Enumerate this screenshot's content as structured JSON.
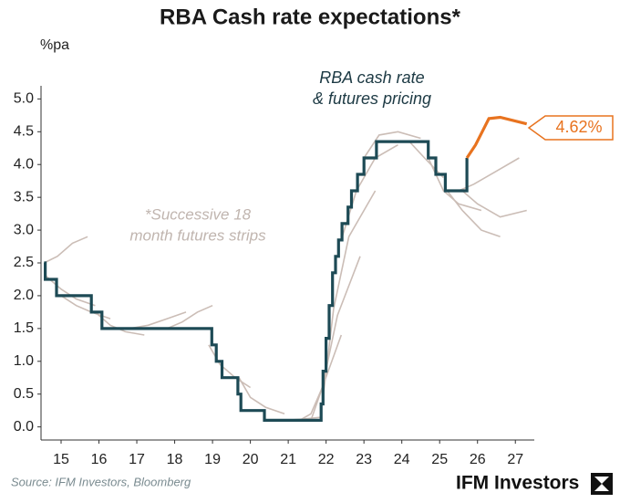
{
  "chart_data": {
    "type": "line",
    "title": "RBA Cash rate expectations*",
    "y_label": "%pa",
    "xlim": [
      14.47,
      27.5
    ],
    "ylim": [
      -0.2,
      5.2
    ],
    "xticks": [
      15,
      16,
      17,
      18,
      19,
      20,
      21,
      22,
      23,
      24,
      25,
      26,
      27
    ],
    "yticks": [
      {
        "value": 0,
        "label": "0.0"
      },
      0.5,
      {
        "value": 1,
        "label": "1.0"
      },
      1.5,
      {
        "value": 2,
        "label": "2.0"
      },
      2.5,
      {
        "value": 3,
        "label": "3.0"
      },
      3.5,
      {
        "value": 4,
        "label": "4.0"
      },
      4.5,
      {
        "value": 5,
        "label": "5.0"
      }
    ],
    "annotations": [
      "RBA cash rate",
      "& futures pricing",
      "*Successive 18",
      "month futures strips"
    ],
    "source": "Source: IFM Investors, Bloomberg",
    "logo": "IFM Investors",
    "futures_strips": {
      "color": "#cbbdb6",
      "lines": [
        {
          "x": [
            14.55,
            14.9,
            15.3,
            15.7
          ],
          "values": [
            2.5,
            2.6,
            2.8,
            2.9
          ]
        },
        {
          "x": [
            14.6,
            15.0,
            15.4,
            15.9
          ],
          "values": [
            2.3,
            2.1,
            1.95,
            1.85
          ]
        },
        {
          "x": [
            15.0,
            15.4,
            15.8,
            16.3
          ],
          "values": [
            2.0,
            1.85,
            1.75,
            1.65
          ]
        },
        {
          "x": [
            15.9,
            16.3,
            16.7,
            17.2
          ],
          "values": [
            1.75,
            1.55,
            1.45,
            1.4
          ]
        },
        {
          "x": [
            16.8,
            17.3,
            17.8,
            18.3
          ],
          "values": [
            1.5,
            1.55,
            1.65,
            1.75
          ]
        },
        {
          "x": [
            17.8,
            18.2,
            18.6,
            19.0
          ],
          "values": [
            1.5,
            1.6,
            1.75,
            1.85
          ]
        },
        {
          "x": [
            18.9,
            19.2,
            19.6,
            20.0
          ],
          "values": [
            1.25,
            0.95,
            0.75,
            0.6
          ]
        },
        {
          "x": [
            19.7,
            20.0,
            20.4,
            20.9
          ],
          "values": [
            0.75,
            0.45,
            0.3,
            0.2
          ]
        },
        {
          "x": [
            20.4,
            20.9,
            21.4,
            21.9
          ],
          "values": [
            0.1,
            0.1,
            0.12,
            0.15
          ]
        },
        {
          "x": [
            21.3,
            21.6,
            21.9,
            22.4
          ],
          "values": [
            0.1,
            0.2,
            0.6,
            1.4
          ]
        },
        {
          "x": [
            21.6,
            21.9,
            22.3,
            22.9
          ],
          "values": [
            0.1,
            0.6,
            1.7,
            2.6
          ]
        },
        {
          "x": [
            21.9,
            22.2,
            22.6,
            23.3
          ],
          "values": [
            0.35,
            1.8,
            2.9,
            3.6
          ]
        },
        {
          "x": [
            22.4,
            22.8,
            23.3,
            23.9
          ],
          "values": [
            2.85,
            3.6,
            4.1,
            4.3
          ]
        },
        {
          "x": [
            23.0,
            23.4,
            23.9,
            24.5
          ],
          "values": [
            4.1,
            4.45,
            4.5,
            4.4
          ]
        },
        {
          "x": [
            23.8,
            24.2,
            24.6,
            25.1
          ],
          "values": [
            4.35,
            4.35,
            4.1,
            3.8
          ]
        },
        {
          "x": [
            24.7,
            25.1,
            25.5,
            26.1
          ],
          "values": [
            4.1,
            3.6,
            3.4,
            3.3
          ]
        },
        {
          "x": [
            25.2,
            25.6,
            26.1,
            26.6
          ],
          "values": [
            3.6,
            3.3,
            3.0,
            2.9
          ]
        },
        {
          "x": [
            25.5,
            25.9,
            26.5,
            27.1
          ],
          "values": [
            3.6,
            3.7,
            3.9,
            4.1
          ]
        },
        {
          "x": [
            25.6,
            26.0,
            26.6,
            27.3
          ],
          "values": [
            3.6,
            3.4,
            3.2,
            3.3
          ]
        }
      ]
    },
    "series": [
      {
        "color": "#1d4a55",
        "x": [
          14.55,
          14.58,
          14.58,
          14.88,
          14.88,
          15.8,
          15.8,
          16.08,
          16.08,
          18.98,
          18.98,
          19.1,
          19.1,
          19.25,
          19.25,
          19.67,
          19.67,
          19.75,
          19.75,
          20.37,
          20.37,
          21.87,
          21.87,
          21.92,
          21.92,
          22.0,
          22.0,
          22.08,
          22.08,
          22.17,
          22.17,
          22.25,
          22.25,
          22.33,
          22.33,
          22.42,
          22.42,
          22.58,
          22.58,
          22.67,
          22.67,
          22.83,
          22.83,
          23.0,
          23.0,
          23.33,
          23.33,
          24.7,
          24.7,
          24.9,
          24.9,
          25.15,
          25.15,
          25.72,
          25.72
        ],
        "values": [
          2.5,
          2.5,
          2.25,
          2.25,
          2.0,
          2.0,
          1.75,
          1.75,
          1.5,
          1.5,
          1.25,
          1.25,
          1.0,
          1.0,
          0.75,
          0.75,
          0.5,
          0.5,
          0.25,
          0.25,
          0.1,
          0.1,
          0.35,
          0.35,
          0.85,
          0.85,
          1.35,
          1.35,
          1.85,
          1.85,
          2.35,
          2.35,
          2.6,
          2.6,
          2.85,
          2.85,
          3.1,
          3.1,
          3.35,
          3.35,
          3.6,
          3.6,
          3.85,
          3.85,
          4.1,
          4.1,
          4.35,
          4.35,
          4.1,
          4.1,
          3.85,
          3.85,
          3.6,
          3.6,
          4.1
        ]
      },
      {
        "color": "#e8731f",
        "x": [
          25.72,
          25.95,
          26.3,
          26.6,
          27.3
        ],
        "values": [
          4.1,
          4.3,
          4.7,
          4.72,
          4.62
        ],
        "value_labels": [
          null,
          null,
          null,
          null,
          "4.62%"
        ]
      }
    ]
  }
}
